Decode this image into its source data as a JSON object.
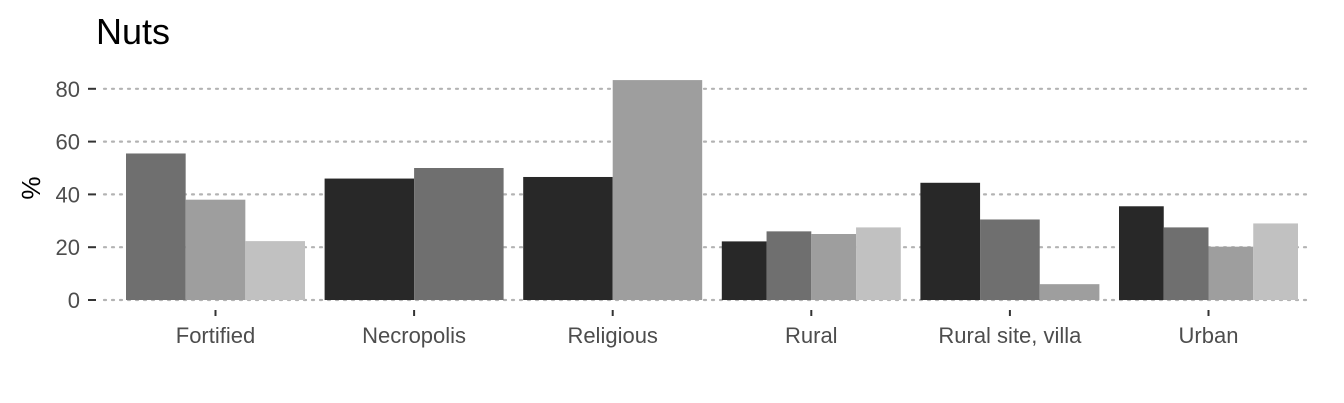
{
  "chart_data": {
    "type": "bar",
    "title": "Nuts",
    "xlabel": "",
    "ylabel": "%",
    "ylim": [
      0,
      84
    ],
    "yticks": [
      0,
      20,
      40,
      60,
      80
    ],
    "grid": "horizontal dotted",
    "legend": "none",
    "categories": [
      "Fortified",
      "Necropolis",
      "Religious",
      "Rural",
      "Rural site, villa",
      "Urban"
    ],
    "groups": [
      {
        "category": "Fortified",
        "bars": [
          {
            "value": 55.5,
            "color": "#6f6f6f"
          },
          {
            "value": 38,
            "color": "#9e9e9e"
          },
          {
            "value": 22.3,
            "color": "#c1c1c1"
          }
        ]
      },
      {
        "category": "Necropolis",
        "bars": [
          {
            "value": 46,
            "color": "#282828"
          },
          {
            "value": 50,
            "color": "#6f6f6f"
          }
        ]
      },
      {
        "category": "Religious",
        "bars": [
          {
            "value": 46.6,
            "color": "#282828"
          },
          {
            "value": 83.3,
            "color": "#9e9e9e"
          }
        ]
      },
      {
        "category": "Rural",
        "bars": [
          {
            "value": 22.2,
            "color": "#282828"
          },
          {
            "value": 26,
            "color": "#6f6f6f"
          },
          {
            "value": 25,
            "color": "#9e9e9e"
          },
          {
            "value": 27.5,
            "color": "#c1c1c1"
          }
        ]
      },
      {
        "category": "Rural site, villa",
        "bars": [
          {
            "value": 44.4,
            "color": "#282828"
          },
          {
            "value": 30.5,
            "color": "#6f6f6f"
          },
          {
            "value": 6,
            "color": "#9e9e9e"
          }
        ]
      },
      {
        "category": "Urban",
        "bars": [
          {
            "value": 35.5,
            "color": "#282828"
          },
          {
            "value": 27.5,
            "color": "#6f6f6f"
          },
          {
            "value": 20.2,
            "color": "#9e9e9e"
          },
          {
            "value": 29,
            "color": "#c1c1c1"
          }
        ]
      }
    ]
  }
}
